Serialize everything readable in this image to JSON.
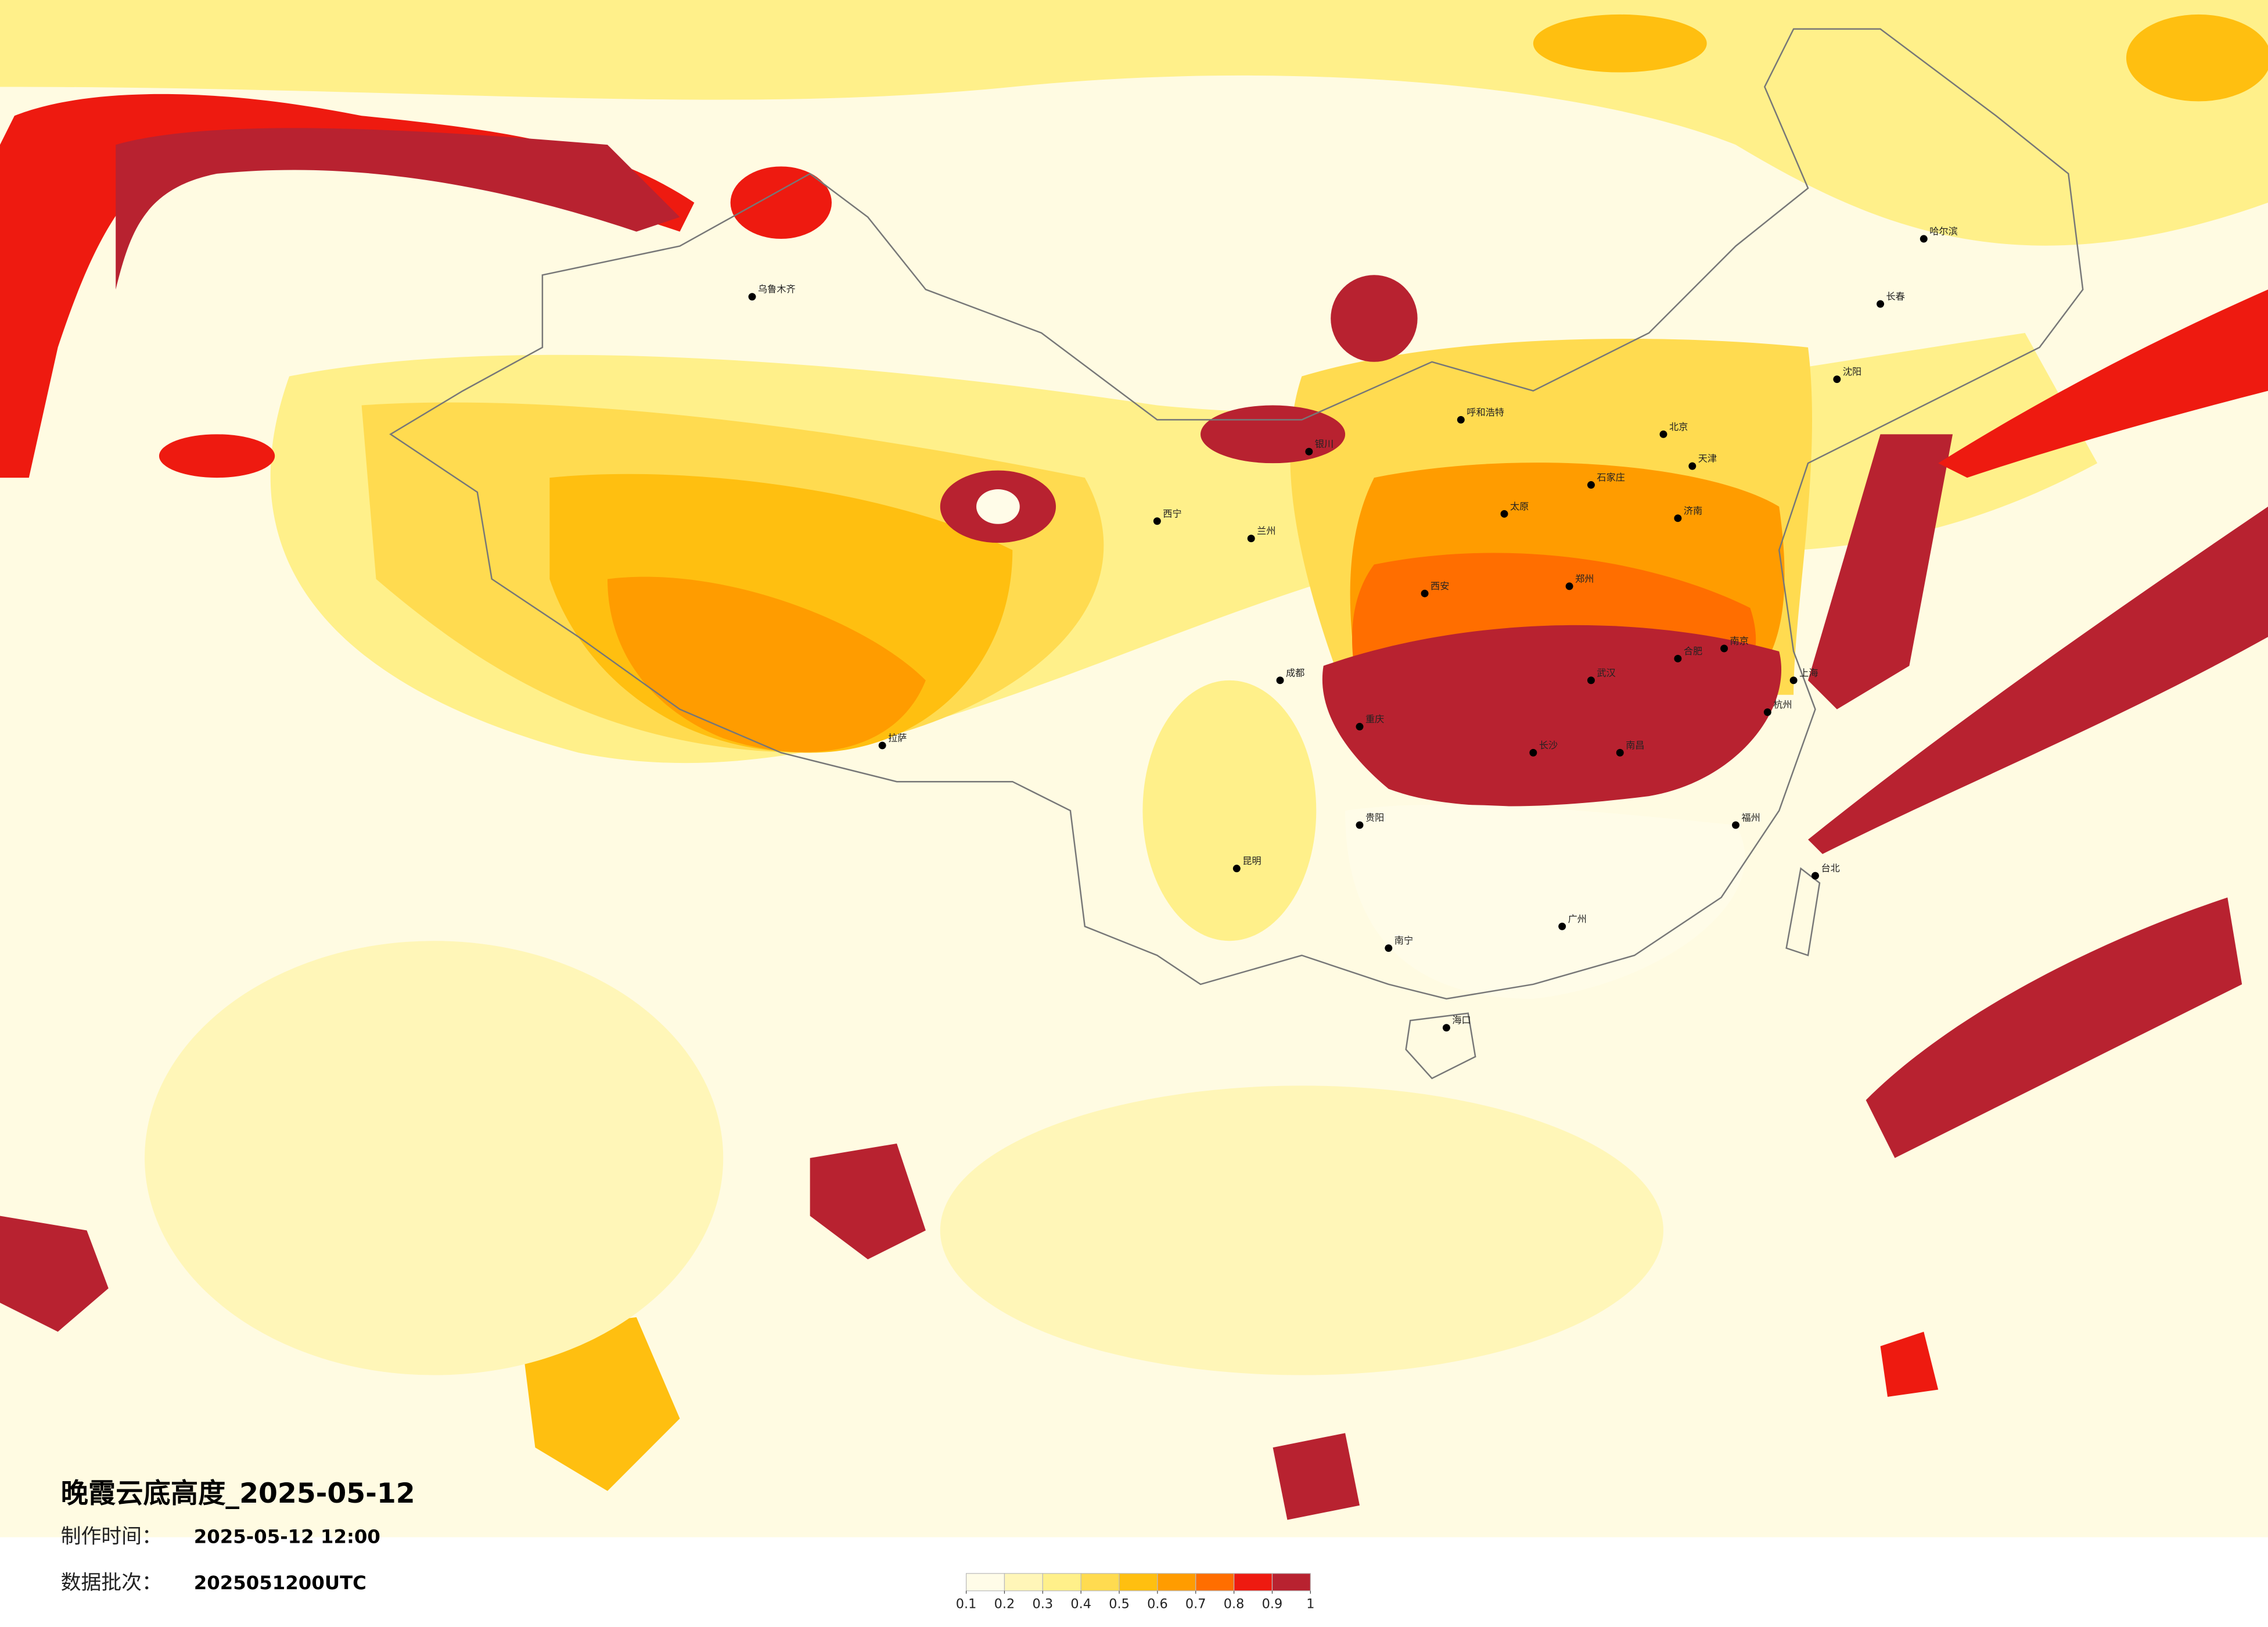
{
  "title": "晚霞云底高度_2025-05-12",
  "made_label": "制作时间：",
  "made_time": "2025-05-12 12:00",
  "batch_label": "数据批次：",
  "batch": "2025051200UTC",
  "legend": {
    "ticks": [
      0.1,
      0.2,
      0.3,
      0.4,
      0.5,
      0.6,
      0.7,
      0.8,
      0.9,
      1
    ],
    "colors": [
      "#fffce8",
      "#fff6b8",
      "#fff08a",
      "#ffdb50",
      "#ffbf10",
      "#ff9c00",
      "#ff6e00",
      "#ee1a10",
      "#b82230"
    ]
  },
  "cities": [
    "北京",
    "天津",
    "石家庄",
    "太原",
    "郑州",
    "济南",
    "合肥",
    "南京",
    "上海",
    "杭州",
    "武汉",
    "长沙",
    "南昌",
    "福州",
    "广州",
    "南宁",
    "海口",
    "贵阳",
    "昆明",
    "成都",
    "重庆",
    "西安",
    "兰州",
    "西宁",
    "银川",
    "呼和浩特",
    "沈阳",
    "长春",
    "哈尔滨",
    "乌鲁木齐",
    "拉萨",
    "台北"
  ]
}
